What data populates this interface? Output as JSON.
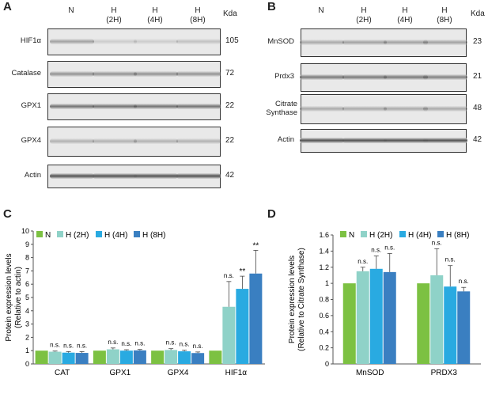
{
  "panelA": {
    "letter": "A",
    "headers": [
      [
        "N",
        ""
      ],
      [
        "H",
        "(2H)"
      ],
      [
        "H",
        "(4H)"
      ],
      [
        "H",
        "(8H)"
      ]
    ],
    "kda_label": "Kda",
    "rows": [
      {
        "label": "HIF1α",
        "kda": "105",
        "intensity": [
          0.45,
          0.18,
          0.18,
          0.25
        ]
      },
      {
        "label": "Catalase",
        "kda": "72",
        "intensity": [
          0.55,
          0.55,
          0.55,
          0.55
        ]
      },
      {
        "label": "GPX1",
        "kda": "22",
        "intensity": [
          0.75,
          0.75,
          0.75,
          0.75
        ]
      },
      {
        "label": "GPX4",
        "kda": "22",
        "intensity": [
          0.35,
          0.35,
          0.35,
          0.35
        ]
      },
      {
        "label": "Actin",
        "kda": "42",
        "intensity": [
          0.95,
          0.95,
          0.95,
          0.95
        ]
      }
    ]
  },
  "panelB": {
    "letter": "B",
    "headers": [
      [
        "N",
        ""
      ],
      [
        "H",
        "(2H)"
      ],
      [
        "H",
        "(4H)"
      ],
      [
        "H",
        "(8H)"
      ]
    ],
    "kda_label": "Kda",
    "rows": [
      {
        "label": "MnSOD",
        "kda": "23",
        "intensity": [
          0.4,
          0.45,
          0.45,
          0.45
        ]
      },
      {
        "label": "Prdx3",
        "kda": "21",
        "intensity": [
          0.7,
          0.7,
          0.7,
          0.65
        ]
      },
      {
        "label": "Citrate Synthase",
        "kda": "48",
        "intensity": [
          0.4,
          0.4,
          0.4,
          0.4
        ]
      },
      {
        "label": "Actin",
        "kda": "42",
        "intensity": [
          0.95,
          0.95,
          0.95,
          0.95
        ]
      }
    ]
  },
  "chart_data": [
    {
      "panel": "C",
      "type": "bar",
      "ylabel": "Protein expression levels (Relative to actin)",
      "ylim": [
        0,
        10
      ],
      "yticks": [
        0,
        1,
        2,
        3,
        4,
        5,
        6,
        7,
        8,
        9,
        10
      ],
      "categories": [
        "CAT",
        "GPX1",
        "GPX4",
        "HIF1α"
      ],
      "legend": [
        "N",
        "H (2H)",
        "H (4H)",
        "H (8H)"
      ],
      "series": [
        {
          "name": "N",
          "color": "#7cc142",
          "values": [
            1,
            1,
            1,
            1
          ],
          "errors": [
            0,
            0,
            0,
            0
          ],
          "labels": [
            "",
            "",
            "",
            ""
          ]
        },
        {
          "name": "H (2H)",
          "color": "#8fd2c8",
          "values": [
            0.92,
            1.1,
            1.05,
            4.3
          ],
          "errors": [
            0.05,
            0.1,
            0.1,
            1.9
          ],
          "labels": [
            "n.s.",
            "n.s.",
            "n.s.",
            "n.s."
          ]
        },
        {
          "name": "H (4H)",
          "color": "#29aae1",
          "values": [
            0.85,
            1.0,
            0.95,
            5.65
          ],
          "errors": [
            0.08,
            0.07,
            0.08,
            0.95
          ],
          "labels": [
            "n.s.",
            "n.s.",
            "n.s.",
            "**"
          ]
        },
        {
          "name": "H (8H)",
          "color": "#3a7fc1",
          "values": [
            0.83,
            1.02,
            0.82,
            6.8
          ],
          "errors": [
            0.1,
            0.07,
            0.08,
            1.75
          ],
          "labels": [
            "n.s.",
            "n.s.",
            "n.s.",
            "**"
          ]
        }
      ]
    },
    {
      "panel": "D",
      "type": "bar",
      "ylabel": "Protein expression levels (Relative to Citrate Synthase)",
      "ylim": [
        0,
        1.6
      ],
      "yticks": [
        "0",
        "0.2",
        "0.4",
        "0.6",
        "0.8",
        "1",
        "1.2",
        "1.4",
        "1.6"
      ],
      "categories": [
        "MnSOD",
        "PRDX3"
      ],
      "legend": [
        "N",
        "H (2H)",
        "H (4H)",
        "H (8H)"
      ],
      "series": [
        {
          "name": "N",
          "color": "#7cc142",
          "values": [
            1,
            1
          ],
          "errors": [
            0,
            0
          ],
          "labels": [
            "",
            ""
          ]
        },
        {
          "name": "H (2H)",
          "color": "#8fd2c8",
          "values": [
            1.15,
            1.1
          ],
          "errors": [
            0.05,
            0.33
          ],
          "labels": [
            "n.s.",
            "n.s."
          ]
        },
        {
          "name": "H (4H)",
          "color": "#29aae1",
          "values": [
            1.18,
            0.96
          ],
          "errors": [
            0.16,
            0.26
          ],
          "labels": [
            "n.s.",
            "n.s."
          ]
        },
        {
          "name": "H (8H)",
          "color": "#3a7fc1",
          "values": [
            1.14,
            0.9
          ],
          "errors": [
            0.23,
            0.05
          ],
          "labels": [
            "n.s.",
            "n.s."
          ]
        }
      ]
    }
  ]
}
